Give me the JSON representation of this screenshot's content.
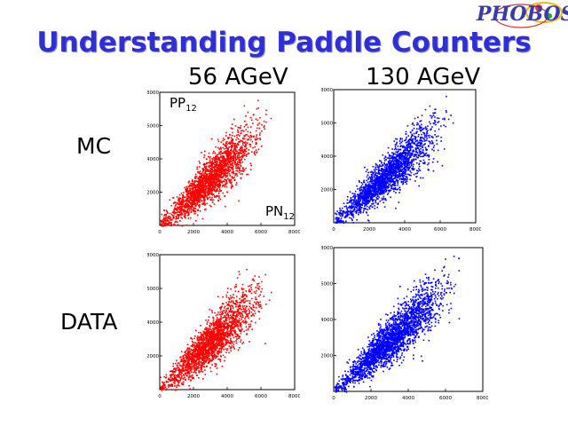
{
  "slide": {
    "title": "Understanding Paddle Counters",
    "logo": "PHOBOS",
    "columns": [
      "56 AGeV",
      "130 AGeV"
    ],
    "rows": [
      "MC",
      "DATA"
    ],
    "annotations": {
      "y_name": "PP",
      "y_sub": "12",
      "x_name": "PN",
      "x_sub": "12"
    }
  },
  "colors": {
    "title": "#2f2fd6",
    "red_series": "#ff0000",
    "blue_series": "#0000ff"
  },
  "chart_data": [
    {
      "type": "scatter",
      "panel": "MC 56 AGeV",
      "color": "#ff0000",
      "xlim": [
        0,
        8000
      ],
      "ylim": [
        0,
        8000
      ],
      "x_ticks": [
        "0",
        "2000",
        "4000",
        "6000",
        "8000"
      ],
      "y_ticks": [
        "2000",
        "4000",
        "6000",
        "8000"
      ],
      "trend": {
        "slope": 0.95,
        "x_center": 3000,
        "x_spread": 1700,
        "y_spread": 650
      },
      "n_points": 2200
    },
    {
      "type": "scatter",
      "panel": "MC 130 AGeV",
      "color": "#0000ff",
      "xlim": [
        0,
        8000
      ],
      "ylim": [
        0,
        8000
      ],
      "x_ticks": [
        "0",
        "2000",
        "4000",
        "6000",
        "8000"
      ],
      "y_ticks": [
        "2000",
        "4000",
        "6000",
        "8000"
      ],
      "trend": {
        "slope": 0.95,
        "x_center": 3000,
        "x_spread": 1700,
        "y_spread": 600
      },
      "n_points": 2200
    },
    {
      "type": "scatter",
      "panel": "DATA 56 AGeV",
      "color": "#ff0000",
      "xlim": [
        0,
        8000
      ],
      "ylim": [
        0,
        8000
      ],
      "x_ticks": [
        "0",
        "2000",
        "4000",
        "6000",
        "8000"
      ],
      "y_ticks": [
        "2000",
        "4000",
        "6000",
        "8000"
      ],
      "trend": {
        "slope": 0.95,
        "x_center": 3000,
        "x_spread": 1700,
        "y_spread": 650
      },
      "n_points": 2200
    },
    {
      "type": "scatter",
      "panel": "DATA 130 AGeV",
      "color": "#0000ff",
      "xlim": [
        0,
        8000
      ],
      "ylim": [
        0,
        8000
      ],
      "x_ticks": [
        "0",
        "2000",
        "4000",
        "6000",
        "8000"
      ],
      "y_ticks": [
        "2000",
        "4000",
        "6000",
        "8000"
      ],
      "trend": {
        "slope": 0.95,
        "x_center": 3100,
        "x_spread": 1800,
        "y_spread": 600
      },
      "n_points": 2600
    }
  ]
}
